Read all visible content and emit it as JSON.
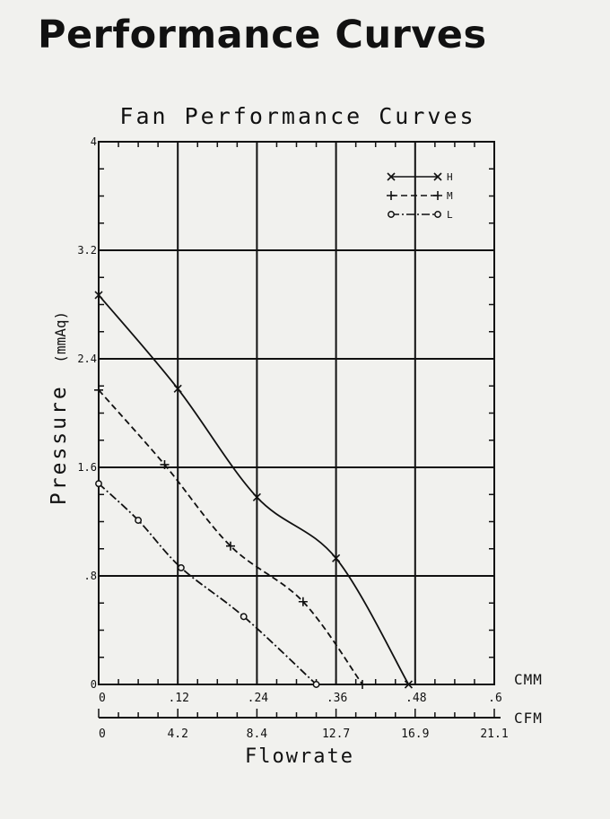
{
  "page": {
    "heading": "Performance Curves"
  },
  "chart_data": {
    "type": "line",
    "title": "Fan Performance Curves",
    "xlabel": "Flowrate",
    "ylabel": "Pressure (mmAq)",
    "x_unit_primary": "CMM",
    "x_unit_secondary": "CFM",
    "xlim": [
      0,
      0.6
    ],
    "ylim": [
      0,
      4
    ],
    "x_ticks": [
      "0",
      ".12",
      ".24",
      ".36",
      ".48",
      ".6"
    ],
    "x_ticks_secondary": [
      "0",
      "4.2",
      "8.4",
      "12.7",
      "16.9",
      "21.1"
    ],
    "y_ticks": [
      "0",
      ".8",
      "1.6",
      "2.4",
      "3.2",
      "4"
    ],
    "grid": true,
    "legend_position": "top-right",
    "series": [
      {
        "name": "H",
        "style": "solid",
        "marker": "x",
        "points": [
          [
            0.0,
            2.87
          ],
          [
            0.12,
            2.18
          ],
          [
            0.24,
            1.38
          ],
          [
            0.36,
            0.93
          ],
          [
            0.47,
            0.0
          ]
        ]
      },
      {
        "name": "M",
        "style": "dashed",
        "marker": "plus",
        "points": [
          [
            0.0,
            2.17
          ],
          [
            0.1,
            1.62
          ],
          [
            0.2,
            1.02
          ],
          [
            0.31,
            0.61
          ],
          [
            0.4,
            0.0
          ]
        ]
      },
      {
        "name": "L",
        "style": "dashdot",
        "marker": "circle",
        "points": [
          [
            0.0,
            1.48
          ],
          [
            0.06,
            1.21
          ],
          [
            0.125,
            0.86
          ],
          [
            0.22,
            0.5
          ],
          [
            0.33,
            0.0
          ]
        ]
      }
    ]
  }
}
